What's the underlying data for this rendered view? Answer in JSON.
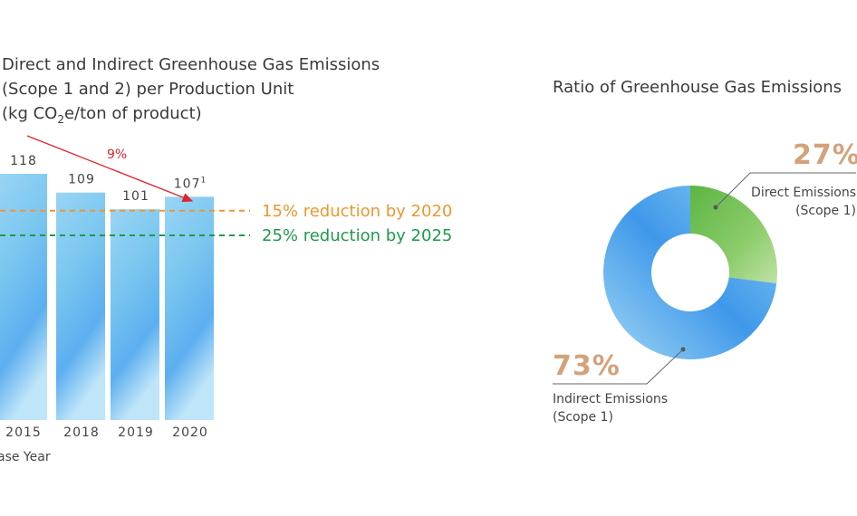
{
  "chart_data": [
    {
      "type": "bar",
      "title_lines": [
        "Direct and Indirect Greenhouse Gas Emissions",
        "(Scope 1 and 2) per Production Unit"
      ],
      "unit_parts": [
        "(kg CO",
        "2",
        "e/ton of product)"
      ],
      "categories": [
        "2015",
        "2018",
        "2019",
        "2020"
      ],
      "values": [
        118,
        109,
        101,
        107
      ],
      "value_labels": [
        "118",
        "109",
        "101",
        "107"
      ],
      "footnote_marks": [
        "",
        "",
        "",
        "1"
      ],
      "base_year_label": "ase Year",
      "trend_label": "9%",
      "targets": [
        {
          "label": "15% reduction by 2020",
          "value": 100.3,
          "color": "#f0962e"
        },
        {
          "label": "25% reduction by 2025",
          "value": 88.5,
          "color": "#1e9a4a"
        }
      ],
      "colors": {
        "bar": "#5ab4ea",
        "bar_light": "#a9dcf6",
        "trend": "#e0242b"
      }
    },
    {
      "type": "pie",
      "title": "Ratio of Greenhouse Gas Emissions",
      "slices": [
        {
          "name_lines": [
            "Direct Emissions",
            "(Scope 1)"
          ],
          "value": 27,
          "percent_label": "27%",
          "color": "#7cc05a"
        },
        {
          "name_lines": [
            "Indirect Emissions",
            "(Scope 1)"
          ],
          "value": 73,
          "percent_label": "73%",
          "color": "#4aa6ee"
        }
      ],
      "percent_color": "#d4a27a"
    }
  ]
}
